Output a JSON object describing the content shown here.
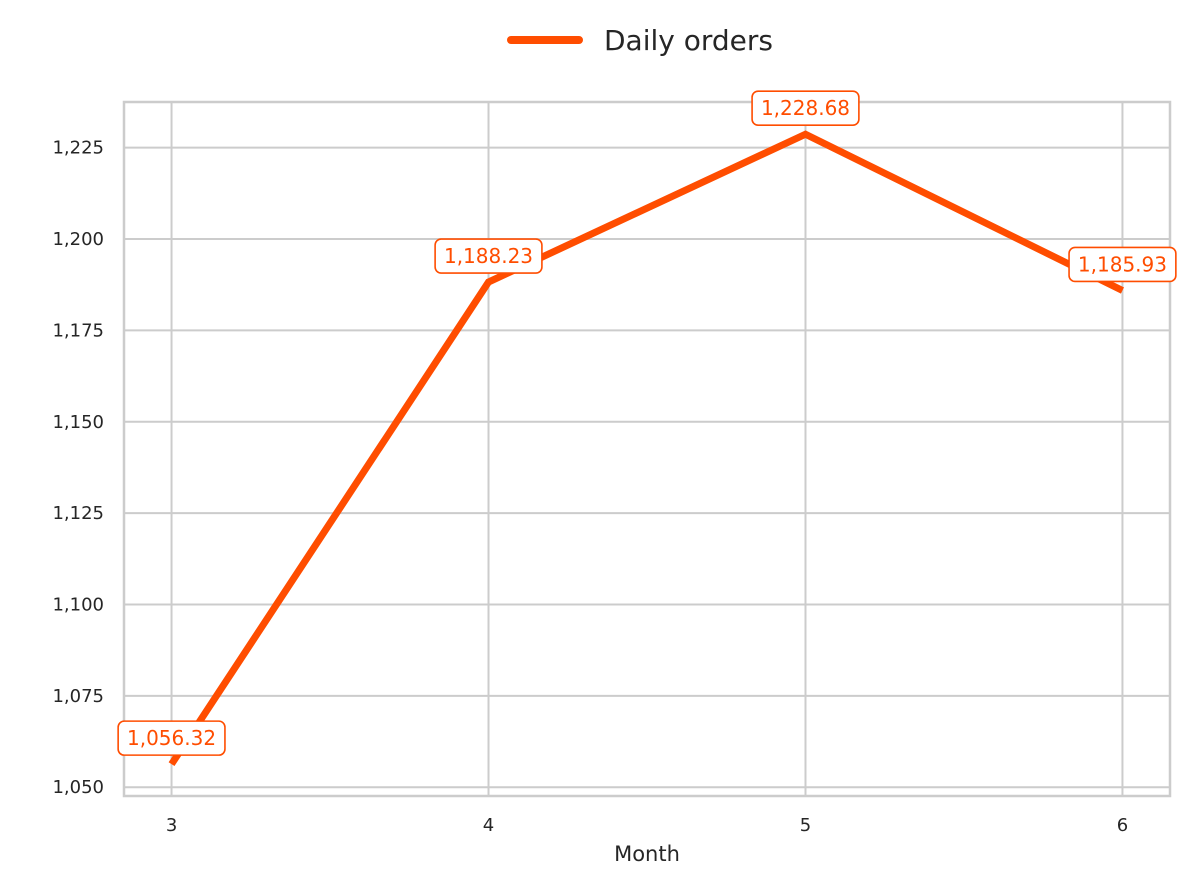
{
  "chart_data": {
    "type": "line",
    "x": [
      3,
      4,
      5,
      6
    ],
    "series": [
      {
        "name": "Daily orders",
        "values": [
          1056.32,
          1188.23,
          1228.68,
          1185.93
        ],
        "labels": [
          "1,056.32",
          "1,188.23",
          "1,228.68",
          "1,185.93"
        ],
        "color": "#ff4d00"
      }
    ],
    "xlabel": "Month",
    "ylabel": "",
    "title": "",
    "x_ticks": [
      "3",
      "4",
      "5",
      "6"
    ],
    "y_ticks": [
      1050,
      1075,
      1100,
      1125,
      1150,
      1175,
      1200,
      1225
    ],
    "y_tick_labels": [
      "1,050",
      "1,075",
      "1,100",
      "1,125",
      "1,150",
      "1,175",
      "1,200",
      "1,225"
    ],
    "xlim": [
      2.85,
      6.15
    ],
    "ylim": [
      1047.6,
      1237.5
    ],
    "grid": true,
    "legend_position": "top-center",
    "colors": {
      "grid": "#cccccc",
      "axis_text": "#262626",
      "background": "#ffffff"
    }
  }
}
